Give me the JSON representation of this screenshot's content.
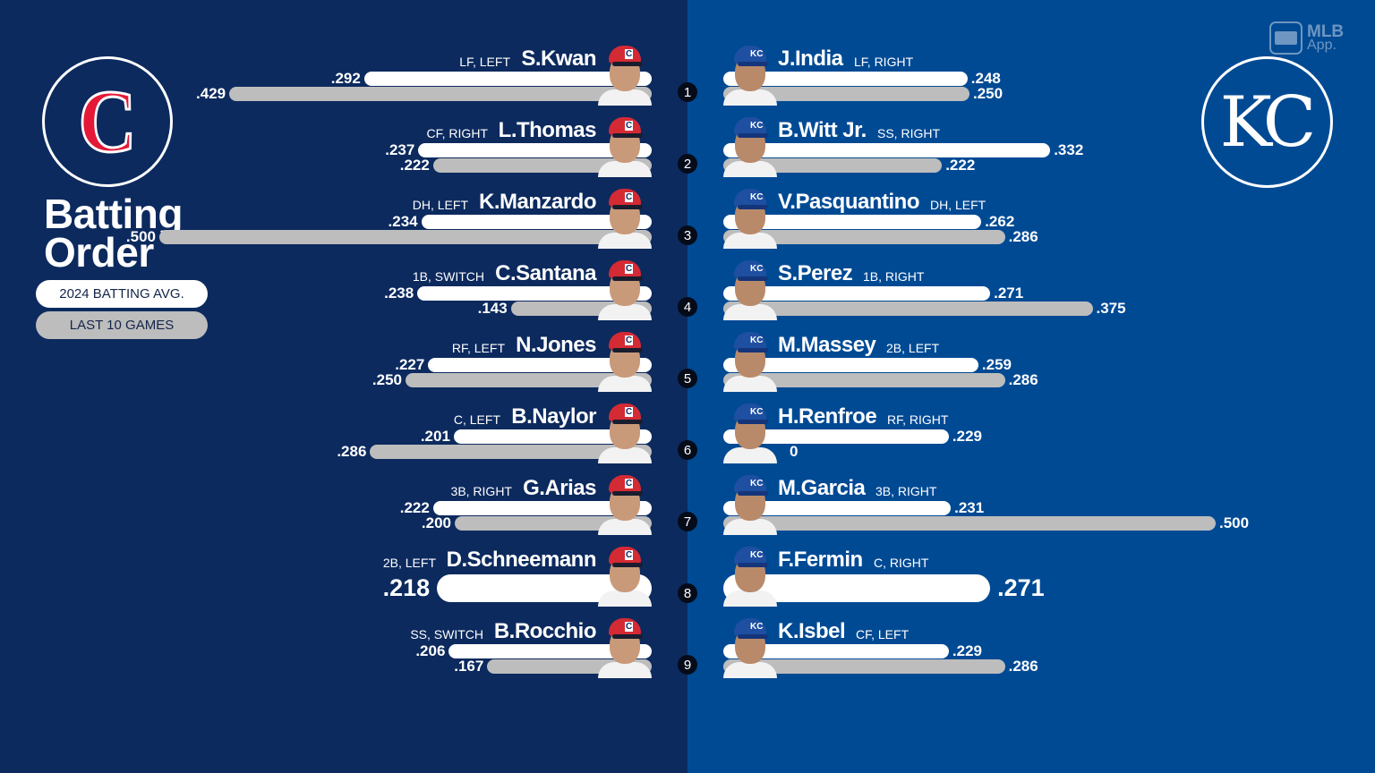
{
  "title": {
    "line1": "Batting",
    "line2": "Order"
  },
  "legend": {
    "season": "2024 BATTING AVG.",
    "last10": "LAST 10 GAMES"
  },
  "branding": {
    "mlb_app_line1": "MLB",
    "mlb_app_line2": "App."
  },
  "teams": {
    "away": {
      "name": "Cleveland Guardians",
      "logo_glyph": "C",
      "primary": "#0c2a5e",
      "accent": "#e31937"
    },
    "home": {
      "name": "Kansas City Royals",
      "logo_glyph": "KC",
      "primary": "#004a94",
      "accent": "#ffffff"
    }
  },
  "colors": {
    "season_bar": "#ffffff",
    "last10_bar": "#bdbdbd",
    "order_badge": "#050b18"
  },
  "cle": [
    {
      "order": "1",
      "name": "S.Kwan",
      "pos": "LF, LEFT",
      "season": ".292",
      "last10": ".429"
    },
    {
      "order": "2",
      "name": "L.Thomas",
      "pos": "CF, RIGHT",
      "season": ".237",
      "last10": ".222"
    },
    {
      "order": "3",
      "name": "K.Manzardo",
      "pos": "DH, LEFT",
      "season": ".234",
      "last10": ".500"
    },
    {
      "order": "4",
      "name": "C.Santana",
      "pos": "1B, SWITCH",
      "season": ".238",
      "last10": ".143"
    },
    {
      "order": "5",
      "name": "N.Jones",
      "pos": "RF, LEFT",
      "season": ".227",
      "last10": ".250"
    },
    {
      "order": "6",
      "name": "B.Naylor",
      "pos": "C, LEFT",
      "season": ".201",
      "last10": ".286"
    },
    {
      "order": "7",
      "name": "G.Arias",
      "pos": "3B, RIGHT",
      "season": ".222",
      "last10": ".200"
    },
    {
      "order": "8",
      "name": "D.Schneemann",
      "pos": "2B, LEFT",
      "season": ".218",
      "last10": ".218"
    },
    {
      "order": "9",
      "name": "B.Rocchio",
      "pos": "SS, SWITCH",
      "season": ".206",
      "last10": ".167"
    }
  ],
  "kc": [
    {
      "order": "1",
      "name": "J.India",
      "pos": "LF, RIGHT",
      "season": ".248",
      "last10": ".250"
    },
    {
      "order": "2",
      "name": "B.Witt Jr.",
      "pos": "SS, RIGHT",
      "season": ".332",
      "last10": ".222"
    },
    {
      "order": "3",
      "name": "V.Pasquantino",
      "pos": "DH, LEFT",
      "season": ".262",
      "last10": ".286"
    },
    {
      "order": "4",
      "name": "S.Perez",
      "pos": "1B, RIGHT",
      "season": ".271",
      "last10": ".375"
    },
    {
      "order": "5",
      "name": "M.Massey",
      "pos": "2B, LEFT",
      "season": ".259",
      "last10": ".286"
    },
    {
      "order": "6",
      "name": "H.Renfroe",
      "pos": "RF, RIGHT",
      "season": ".229",
      "last10": "0"
    },
    {
      "order": "7",
      "name": "M.Garcia",
      "pos": "3B, RIGHT",
      "season": ".231",
      "last10": ".500"
    },
    {
      "order": "8",
      "name": "F.Fermin",
      "pos": "C, RIGHT",
      "season": ".271",
      "last10": ".271"
    },
    {
      "order": "9",
      "name": "K.Isbel",
      "pos": "CF, LEFT",
      "season": ".229",
      "last10": ".286"
    }
  ]
}
